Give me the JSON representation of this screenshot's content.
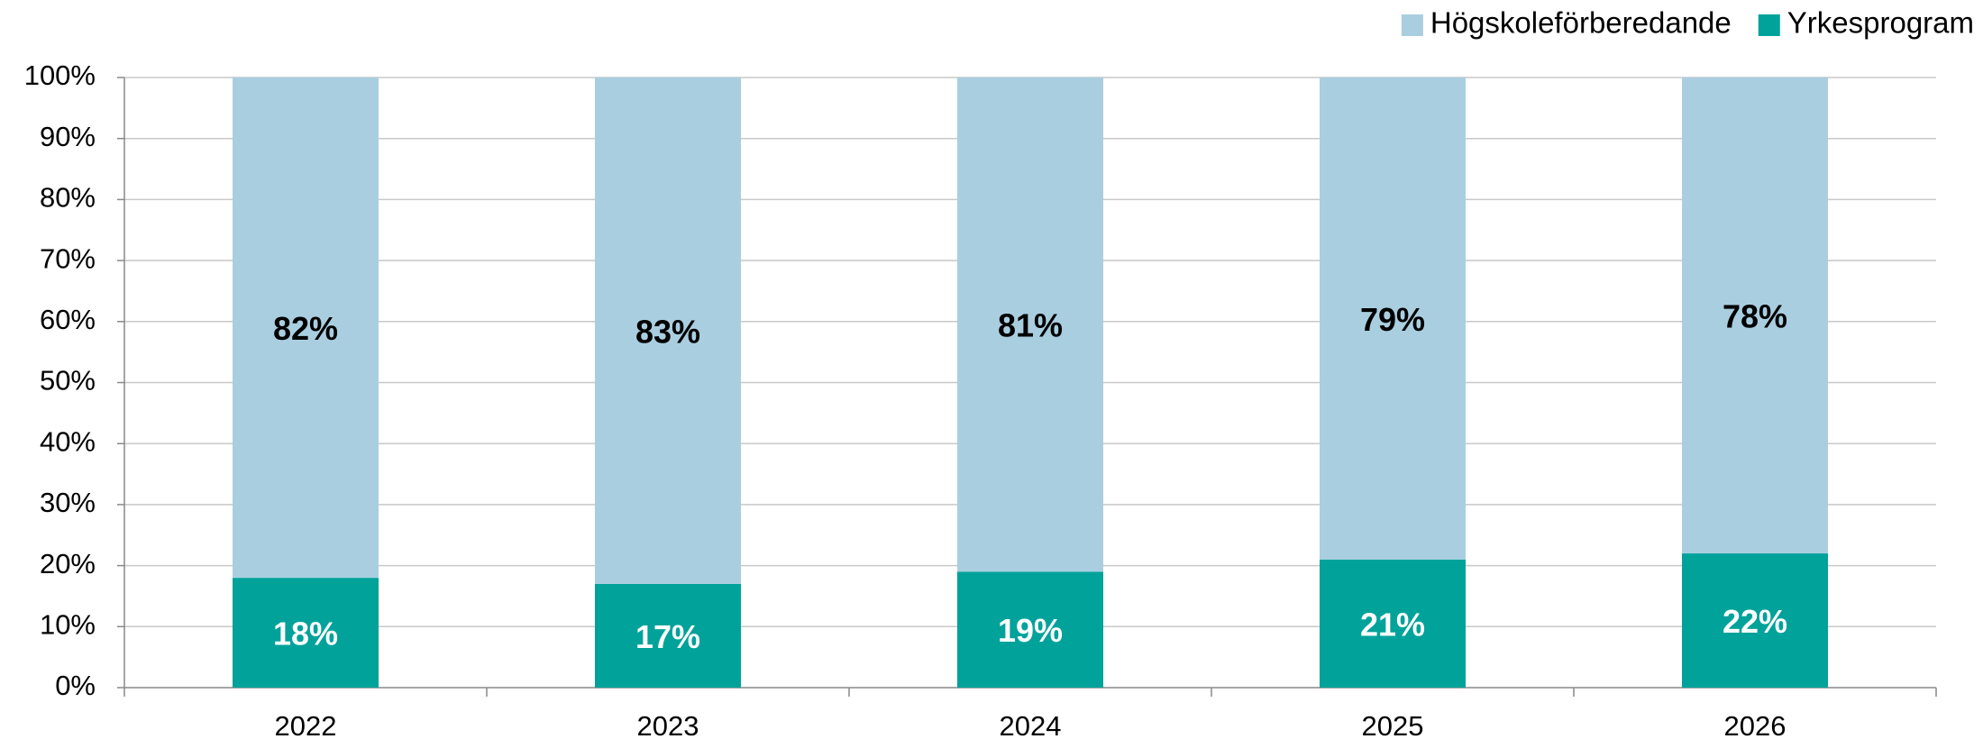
{
  "chart_data": {
    "type": "stacked_bar",
    "categories": [
      "2022",
      "2023",
      "2024",
      "2025",
      "2026"
    ],
    "series": [
      {
        "name": "Högskoleförberedande",
        "color": "#a9cee0",
        "label_color": "#000000",
        "values": [
          82,
          83,
          81,
          79,
          78
        ],
        "value_labels": [
          "82%",
          "83%",
          "81%",
          "79%",
          "78%"
        ]
      },
      {
        "name": "Yrkesprogram",
        "color": "#00a29a",
        "label_color": "#ffffff",
        "values": [
          18,
          17,
          19,
          21,
          22
        ],
        "value_labels": [
          "18%",
          "17%",
          "19%",
          "21%",
          "22%"
        ]
      }
    ],
    "ylim": [
      0,
      100
    ],
    "yticks": [
      {
        "value": 0,
        "label": "0%"
      },
      {
        "value": 10,
        "label": "10%"
      },
      {
        "value": 20,
        "label": "20%"
      },
      {
        "value": 30,
        "label": "30%"
      },
      {
        "value": 40,
        "label": "40%"
      },
      {
        "value": 50,
        "label": "50%"
      },
      {
        "value": 60,
        "label": "60%"
      },
      {
        "value": 70,
        "label": "70%"
      },
      {
        "value": 80,
        "label": "80%"
      },
      {
        "value": 90,
        "label": "90%"
      },
      {
        "value": 100,
        "label": "100%"
      }
    ],
    "grid": true,
    "legend": "top-right"
  }
}
